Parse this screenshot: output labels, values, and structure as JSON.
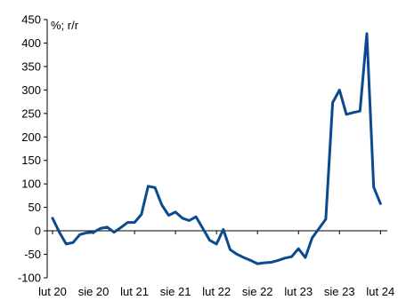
{
  "chart_data": {
    "type": "line",
    "title": "",
    "xlabel": "",
    "ylabel": "%; r/r",
    "ylim": [
      -100,
      450
    ],
    "yticks": [
      450,
      400,
      350,
      300,
      250,
      200,
      150,
      100,
      50,
      0,
      -50,
      -100
    ],
    "ytick_labels": [
      "450",
      "400",
      "350",
      "300",
      "250",
      "200",
      "150",
      "100",
      "50",
      "0",
      "-50",
      "-100"
    ],
    "xlim": [
      0,
      49
    ],
    "xticks": [
      0,
      6,
      12,
      18,
      24,
      30,
      36,
      42,
      48
    ],
    "xtick_labels": [
      "lut 20",
      "sie 20",
      "lut 21",
      "sie 21",
      "lut 22",
      "sie 22",
      "lut 23",
      "sie 23",
      "lut 24"
    ],
    "grid": false,
    "legend": "none",
    "color": "#0b4a8f",
    "series": [
      {
        "name": "",
        "x": [
          0,
          1,
          2,
          3,
          4,
          5,
          6,
          7,
          8,
          9,
          10,
          11,
          12,
          13,
          14,
          15,
          16,
          17,
          18,
          19,
          20,
          21,
          22,
          23,
          24,
          25,
          26,
          27,
          28,
          29,
          30,
          31,
          32,
          33,
          34,
          35,
          36,
          37,
          38,
          39,
          40,
          41,
          42,
          43,
          44,
          45,
          46,
          47,
          48
        ],
        "values": [
          27,
          -3,
          -28,
          -25,
          -8,
          -4,
          -3,
          5,
          8,
          -3,
          7,
          18,
          18,
          35,
          95,
          92,
          55,
          33,
          40,
          27,
          22,
          30,
          5,
          -20,
          -28,
          3,
          -40,
          -50,
          -57,
          -63,
          -70,
          -68,
          -67,
          -63,
          -58,
          -55,
          -38,
          -57,
          -15,
          5,
          25,
          273,
          300,
          248,
          252,
          255,
          420,
          93,
          58
        ]
      }
    ]
  }
}
